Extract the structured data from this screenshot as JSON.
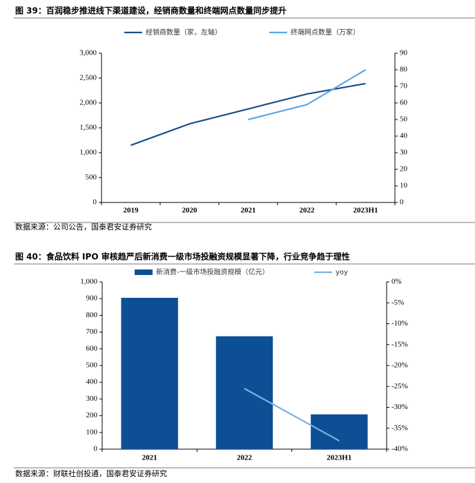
{
  "chart_data": [
    {
      "type": "line",
      "title": "图 39：百润稳步推进线下渠道建设，经销商数量和终端网点数量同步提升",
      "categories": [
        "2019",
        "2020",
        "2021",
        "2022",
        "2023H1"
      ],
      "series": [
        {
          "name": "经销商数量（家，左轴）",
          "color": "#1a4f8a",
          "values": [
            1150,
            1580,
            1880,
            2180,
            2390
          ]
        },
        {
          "name": "终端网点数量（万家）",
          "color": "#5aa6e6",
          "axis": "y2",
          "values": [
            null,
            null,
            50,
            59,
            80
          ]
        }
      ],
      "ylim": [
        0,
        3000
      ],
      "yticks": [
        0,
        500,
        {
          "value": 1000,
          "label": "1,000"
        },
        {
          "value": 1500,
          "label": "1,500"
        },
        {
          "value": 2000,
          "label": "2,000"
        },
        {
          "value": 2500,
          "label": "2,500"
        },
        {
          "value": 3000,
          "label": "3,000"
        }
      ],
      "y2lim": [
        0,
        90
      ],
      "y2ticks": [
        0,
        10,
        20,
        30,
        40,
        50,
        60,
        70,
        80,
        90
      ],
      "source": "数据来源：公司公告，国泰君安证券研究"
    },
    {
      "type": "bar",
      "title": "图 40：食品饮料 IPO 审核趋严后新消费一级市场投融资规模显著下降，行业竞争趋于理性",
      "categories": [
        "2021",
        "2022",
        "2023H1"
      ],
      "series": [
        {
          "name": "新消费-一级市场投融资规模（亿元）",
          "color": "#0d4f94",
          "values": [
            905,
            675,
            208
          ]
        },
        {
          "name": "yoy",
          "type": "line",
          "color": "#7fb0e0",
          "axis": "y2",
          "values": [
            null,
            -25.5,
            -38
          ]
        }
      ],
      "ylim": [
        0,
        1000
      ],
      "yticks": [
        0,
        100,
        200,
        300,
        400,
        500,
        600,
        700,
        800,
        900,
        {
          "value": 1000,
          "label": "1,000"
        }
      ],
      "y2lim": [
        -40,
        0
      ],
      "y2ticks": [
        {
          "value": 0,
          "label": "0%"
        },
        {
          "value": -5,
          "label": "-5%"
        },
        {
          "value": -10,
          "label": "-10%"
        },
        {
          "value": -15,
          "label": "-15%"
        },
        {
          "value": -20,
          "label": "-20%"
        },
        {
          "value": -25,
          "label": "-25%"
        },
        {
          "value": -30,
          "label": "-30%"
        },
        {
          "value": -35,
          "label": "-35%"
        },
        {
          "value": -40,
          "label": "-40%"
        }
      ],
      "source": "数据来源：财联社创投通，国泰君安证券研究"
    }
  ]
}
